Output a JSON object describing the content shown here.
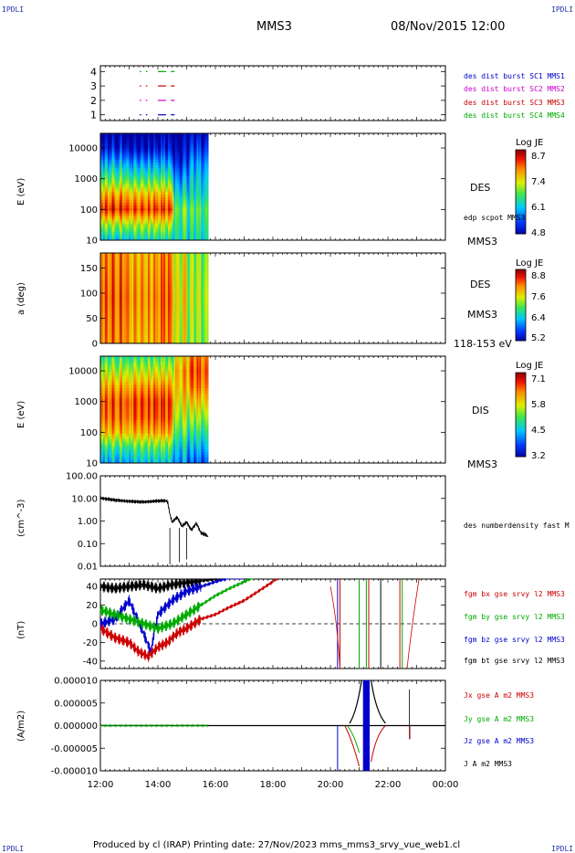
{
  "header": {
    "corner_labels": [
      "IPDLI",
      "IPDLI",
      "IPDLI",
      "IPDLI"
    ],
    "spacecraft": "MMS3",
    "datetime": "08/Nov/2015 12:00"
  },
  "footer": {
    "text": "Produced by cl (IRAP)   Printing date: 27/Nov/2023   mms_mms3_srvy_vue_web1.cl"
  },
  "panels": {
    "burst": {
      "yticks": [
        "1",
        "2",
        "3",
        "4"
      ],
      "labels": [
        {
          "text": "des dist burst SC1 MMS1",
          "color": "#0000cc"
        },
        {
          "text": "des dist burst SC2 MMS2",
          "color": "#cc00cc"
        },
        {
          "text": "des dist burst SC3 MMS3",
          "color": "#cc0000"
        },
        {
          "text": "des dist burst SC4 MMS4",
          "color": "#00aa00"
        }
      ]
    },
    "des_energy": {
      "ylabel": "E (eV)",
      "yticks": [
        "10",
        "100",
        "1000",
        "10000"
      ],
      "side_label": "DES",
      "side_label2": "edp scpot MMS3",
      "bottom_label": "MMS3",
      "colorbar": {
        "title": "Log JE",
        "ticks": [
          "8.7",
          "7.4",
          "6.1",
          "4.8"
        ]
      }
    },
    "des_pitch": {
      "ylabel": "a (deg)",
      "yticks": [
        "0",
        "50",
        "100",
        "150"
      ],
      "side_label": "DES",
      "side_label2": "MMS3",
      "bottom_label": "118-153 eV",
      "colorbar": {
        "title": "Log JE",
        "ticks": [
          "8.8",
          "7.6",
          "6.4",
          "5.2"
        ]
      }
    },
    "dis_energy": {
      "ylabel": "E (eV)",
      "yticks": [
        "10",
        "100",
        "1000",
        "10000"
      ],
      "side_label": "DIS",
      "bottom_label": "MMS3",
      "colorbar": {
        "title": "Log JE",
        "ticks": [
          "7.1",
          "5.8",
          "4.5",
          "3.2"
        ]
      }
    },
    "density": {
      "ylabel": "(cm^-3)",
      "yticks": [
        "0.01",
        "0.10",
        "1.00",
        "10.00",
        "100.00"
      ],
      "side_label": "des numberdensity fast M"
    },
    "bfield": {
      "ylabel": "(nT)",
      "yticks": [
        "-40",
        "-20",
        "0",
        "20",
        "40"
      ],
      "labels": [
        {
          "text": "fgm bx gse srvy l2 MMS3",
          "color": "#cc0000"
        },
        {
          "text": "fgm by gse srvy l2 MMS3",
          "color": "#00aa00"
        },
        {
          "text": "fgm bz gse srvy l2 MMS3",
          "color": "#0000cc"
        },
        {
          "text": "fgm bt gse srvy l2 MMS3",
          "color": "#000000"
        }
      ]
    },
    "current": {
      "ylabel": "(A/m2)",
      "yticks": [
        "-0.000010",
        "-0.000005",
        "0.000000",
        "0.000005",
        "0.000010"
      ],
      "labels": [
        {
          "text": "Jx gse A m2 MMS3",
          "color": "#cc0000"
        },
        {
          "text": "Jy gse A m2 MMS3",
          "color": "#00aa00"
        },
        {
          "text": "Jz gse A m2 MMS3",
          "color": "#0000cc"
        },
        {
          "text": "J A m2 MMS3",
          "color": "#000000"
        }
      ]
    }
  },
  "chart_data": [
    {
      "type": "line",
      "name": "burst availability",
      "xlim": [
        "12:00",
        "24:00"
      ],
      "ylim": [
        0.6,
        4.4
      ],
      "series": [
        {
          "name": "des dist burst SC1 MMS1",
          "y": 1,
          "color": "#0000cc",
          "intervals": [
            [
              "13:22",
              "13:25"
            ],
            [
              "13:35",
              "13:38"
            ],
            [
              "14:00",
              "14:17"
            ],
            [
              "14:27",
              "14:35"
            ]
          ]
        },
        {
          "name": "des dist burst SC2 MMS2",
          "y": 2,
          "color": "#cc00cc",
          "intervals": [
            [
              "13:22",
              "13:25"
            ],
            [
              "13:35",
              "13:38"
            ],
            [
              "14:00",
              "14:17"
            ],
            [
              "14:27",
              "14:35"
            ]
          ]
        },
        {
          "name": "des dist burst SC3 MMS3",
          "y": 3,
          "color": "#cc0000",
          "intervals": [
            [
              "13:22",
              "13:25"
            ],
            [
              "13:35",
              "13:38"
            ],
            [
              "14:00",
              "14:17"
            ],
            [
              "14:27",
              "14:35"
            ]
          ]
        },
        {
          "name": "des dist burst SC4 MMS4",
          "y": 4,
          "color": "#00aa00",
          "intervals": [
            [
              "13:22",
              "13:25"
            ],
            [
              "13:35",
              "13:38"
            ],
            [
              "14:00",
              "14:17"
            ],
            [
              "14:27",
              "14:35"
            ]
          ]
        }
      ]
    },
    {
      "type": "heatmap",
      "name": "DES energy spectrogram",
      "xlim": [
        "12:00",
        "24:00"
      ],
      "ylim": [
        10,
        30000
      ],
      "log_y": true,
      "data_coverage": [
        "12:00",
        "15:45"
      ],
      "zrange": [
        4.8,
        8.7
      ],
      "colormap": "rainbow",
      "columns": [
        {
          "t": "12:00",
          "levels": [
            [
              10,
              6.4
            ],
            [
              30,
              7.3
            ],
            [
              100,
              8.6
            ],
            [
              300,
              8.0
            ],
            [
              1000,
              7.0
            ],
            [
              3000,
              6.3
            ],
            [
              10000,
              5.4
            ],
            [
              30000,
              5.0
            ]
          ]
        },
        {
          "t": "13:00",
          "levels": [
            [
              10,
              6.6
            ],
            [
              30,
              7.4
            ],
            [
              100,
              8.5
            ],
            [
              300,
              7.9
            ],
            [
              1000,
              6.9
            ],
            [
              3000,
              6.2
            ],
            [
              10000,
              5.3
            ],
            [
              30000,
              5.0
            ]
          ]
        },
        {
          "t": "14:00",
          "levels": [
            [
              10,
              6.5
            ],
            [
              30,
              7.3
            ],
            [
              100,
              8.4
            ],
            [
              300,
              7.8
            ],
            [
              1000,
              6.8
            ],
            [
              3000,
              6.1
            ],
            [
              10000,
              5.3
            ],
            [
              30000,
              5.0
            ]
          ]
        },
        {
          "t": "14:30",
          "levels": [
            [
              10,
              6.6
            ],
            [
              30,
              6.8
            ],
            [
              100,
              7.0
            ],
            [
              300,
              6.5
            ],
            [
              1000,
              6.0
            ],
            [
              3000,
              5.5
            ],
            [
              10000,
              5.1
            ],
            [
              30000,
              4.9
            ]
          ]
        },
        {
          "t": "15:00",
          "levels": [
            [
              10,
              6.4
            ],
            [
              30,
              6.6
            ],
            [
              100,
              6.8
            ],
            [
              300,
              6.4
            ],
            [
              1000,
              6.2
            ],
            [
              3000,
              5.9
            ],
            [
              10000,
              5.4
            ],
            [
              30000,
              5.0
            ]
          ]
        },
        {
          "t": "15:45",
          "levels": [
            [
              10,
              6.2
            ],
            [
              30,
              6.4
            ],
            [
              100,
              6.5
            ],
            [
              300,
              6.3
            ],
            [
              1000,
              6.1
            ],
            [
              3000,
              5.8
            ],
            [
              10000,
              5.3
            ],
            [
              30000,
              5.0
            ]
          ]
        }
      ]
    },
    {
      "type": "heatmap",
      "name": "DES pitch angle 118-153 eV",
      "xlim": [
        "12:00",
        "24:00"
      ],
      "ylim": [
        0,
        180
      ],
      "data_coverage": [
        "12:00",
        "15:45"
      ],
      "zrange": [
        5.2,
        8.8
      ],
      "colormap": "rainbow",
      "columns": [
        {
          "t": "12:00",
          "value": 8.5
        },
        {
          "t": "13:00",
          "value": 8.3
        },
        {
          "t": "14:00",
          "value": 8.4
        },
        {
          "t": "14:30",
          "value": 7.8
        },
        {
          "t": "15:00",
          "value": 7.4
        },
        {
          "t": "15:45",
          "value": 7.0
        }
      ]
    },
    {
      "type": "heatmap",
      "name": "DIS energy spectrogram",
      "xlim": [
        "12:00",
        "24:00"
      ],
      "ylim": [
        10,
        30000
      ],
      "log_y": true,
      "data_coverage": [
        "12:00",
        "15:45"
      ],
      "zrange": [
        3.2,
        7.1
      ],
      "colormap": "rainbow",
      "columns": [
        {
          "t": "12:00",
          "levels": [
            [
              10,
              4.6
            ],
            [
              30,
              5.2
            ],
            [
              100,
              6.3
            ],
            [
              300,
              6.7
            ],
            [
              1000,
              6.8
            ],
            [
              3000,
              6.4
            ],
            [
              10000,
              5.8
            ],
            [
              30000,
              5.2
            ]
          ]
        },
        {
          "t": "13:00",
          "levels": [
            [
              10,
              4.8
            ],
            [
              30,
              5.4
            ],
            [
              100,
              6.4
            ],
            [
              300,
              6.8
            ],
            [
              1000,
              6.9
            ],
            [
              3000,
              6.5
            ],
            [
              10000,
              5.9
            ],
            [
              30000,
              5.3
            ]
          ]
        },
        {
          "t": "14:00",
          "levels": [
            [
              10,
              4.7
            ],
            [
              30,
              5.3
            ],
            [
              100,
              6.3
            ],
            [
              300,
              6.7
            ],
            [
              1000,
              6.8
            ],
            [
              3000,
              6.4
            ],
            [
              10000,
              5.8
            ],
            [
              30000,
              5.2
            ]
          ]
        },
        {
          "t": "14:30",
          "levels": [
            [
              10,
              4.4
            ],
            [
              30,
              4.8
            ],
            [
              100,
              5.3
            ],
            [
              300,
              5.7
            ],
            [
              1000,
              6.0
            ],
            [
              3000,
              6.2
            ],
            [
              10000,
              6.3
            ],
            [
              30000,
              6.0
            ]
          ]
        },
        {
          "t": "15:00",
          "levels": [
            [
              10,
              4.0
            ],
            [
              30,
              4.5
            ],
            [
              100,
              5.0
            ],
            [
              300,
              5.5
            ],
            [
              1000,
              6.0
            ],
            [
              3000,
              6.4
            ],
            [
              10000,
              6.6
            ],
            [
              30000,
              6.4
            ]
          ]
        },
        {
          "t": "15:45",
          "levels": [
            [
              10,
              3.8
            ],
            [
              30,
              4.3
            ],
            [
              100,
              4.8
            ],
            [
              300,
              5.3
            ],
            [
              1000,
              5.8
            ],
            [
              3000,
              6.2
            ],
            [
              10000,
              6.4
            ],
            [
              30000,
              6.3
            ]
          ]
        }
      ]
    },
    {
      "type": "line",
      "name": "DES number density",
      "xlim": [
        "12:00",
        "24:00"
      ],
      "ylim": [
        0.01,
        100
      ],
      "log_y": true,
      "series": [
        {
          "name": "des numberdensity fast M",
          "color": "#000000",
          "x": [
            "12:00",
            "12:30",
            "13:00",
            "13:30",
            "14:00",
            "14:15",
            "14:20",
            "14:25",
            "14:30",
            "14:40",
            "14:50",
            "15:00",
            "15:10",
            "15:20",
            "15:30",
            "15:40",
            "15:45"
          ],
          "y": [
            10.5,
            8.5,
            7.5,
            7.0,
            7.8,
            8.0,
            7.5,
            2.0,
            0.9,
            1.5,
            0.6,
            0.9,
            0.4,
            0.8,
            0.3,
            0.25,
            0.2
          ]
        }
      ]
    },
    {
      "type": "line",
      "name": "FGM magnetic field",
      "xlim": [
        "12:00",
        "24:00"
      ],
      "ylim": [
        -48,
        48
      ],
      "series": [
        {
          "name": "fgm bx gse srvy l2 MMS3",
          "color": "#cc0000",
          "x": [
            "12:00",
            "12:30",
            "13:00",
            "13:20",
            "13:40",
            "14:00",
            "14:20",
            "14:40",
            "15:00",
            "15:30",
            "16:00",
            "16:30",
            "17:00",
            "17:30",
            "18:00",
            "18:10"
          ],
          "y": [
            -5,
            -15,
            -20,
            -30,
            -35,
            -25,
            -20,
            -10,
            -5,
            5,
            10,
            18,
            25,
            35,
            45,
            50
          ]
        },
        {
          "name": "fgm by gse srvy l2 MMS3",
          "color": "#00aa00",
          "x": [
            "12:00",
            "12:30",
            "13:00",
            "13:30",
            "14:00",
            "14:30",
            "15:00",
            "15:30",
            "16:00",
            "16:30",
            "17:00",
            "17:20"
          ],
          "y": [
            15,
            10,
            5,
            0,
            -5,
            0,
            10,
            20,
            30,
            38,
            45,
            50
          ]
        },
        {
          "name": "fgm bz gse srvy l2 MMS3",
          "color": "#0000cc",
          "x": [
            "12:00",
            "12:30",
            "13:00",
            "13:30",
            "13:45",
            "14:00",
            "14:30",
            "15:00",
            "15:30",
            "16:00",
            "16:30",
            "17:00"
          ],
          "y": [
            0,
            5,
            25,
            -10,
            -30,
            10,
            25,
            35,
            40,
            45,
            50,
            50
          ]
        },
        {
          "name": "fgm bt gse srvy l2 MMS3",
          "color": "#000000",
          "x": [
            "12:00",
            "12:30",
            "13:00",
            "13:30",
            "14:00",
            "14:30",
            "15:00",
            "15:30",
            "16:00",
            "16:30"
          ],
          "y": [
            40,
            38,
            40,
            42,
            38,
            42,
            44,
            46,
            48,
            50
          ]
        }
      ]
    },
    {
      "type": "line",
      "name": "Current density",
      "xlim": [
        "12:00",
        "24:00"
      ],
      "ylim": [
        -1e-05,
        1e-05
      ],
      "series": [
        {
          "name": "Jx gse A m2 MMS3",
          "color": "#cc0000",
          "x": [
            "12:00",
            "15:45",
            "20:00",
            "21:00",
            "22:45"
          ],
          "y": [
            0,
            0,
            0,
            -4e-06,
            -2e-06
          ]
        },
        {
          "name": "Jy gse A m2 MMS3",
          "color": "#00aa00",
          "x": [
            "12:00",
            "15:45",
            "20:00",
            "21:00",
            "22:00"
          ],
          "y": [
            0,
            0,
            0,
            -5e-06,
            0
          ]
        },
        {
          "name": "Jz gse A m2 MMS3",
          "color": "#0000cc",
          "x": [
            "12:00",
            "15:45",
            "20:00",
            "21:00",
            "22:00"
          ],
          "y": [
            0,
            0,
            0,
            -1e-05,
            0
          ]
        },
        {
          "name": "J A m2 MMS3",
          "color": "#000000",
          "x": [
            "12:00",
            "15:45",
            "20:00",
            "21:15",
            "21:30",
            "22:00",
            "22:45"
          ],
          "y": [
            0,
            0,
            0,
            1e-05,
            5e-06,
            1e-06,
            8e-06
          ]
        }
      ]
    }
  ],
  "xaxis": {
    "ticks": [
      "12:00",
      "14:00",
      "16:00",
      "18:00",
      "20:00",
      "22:00",
      "00:00"
    ]
  },
  "colors": {
    "background": "#ffffff",
    "axis": "#000000",
    "corner_text": "#2233aa"
  }
}
